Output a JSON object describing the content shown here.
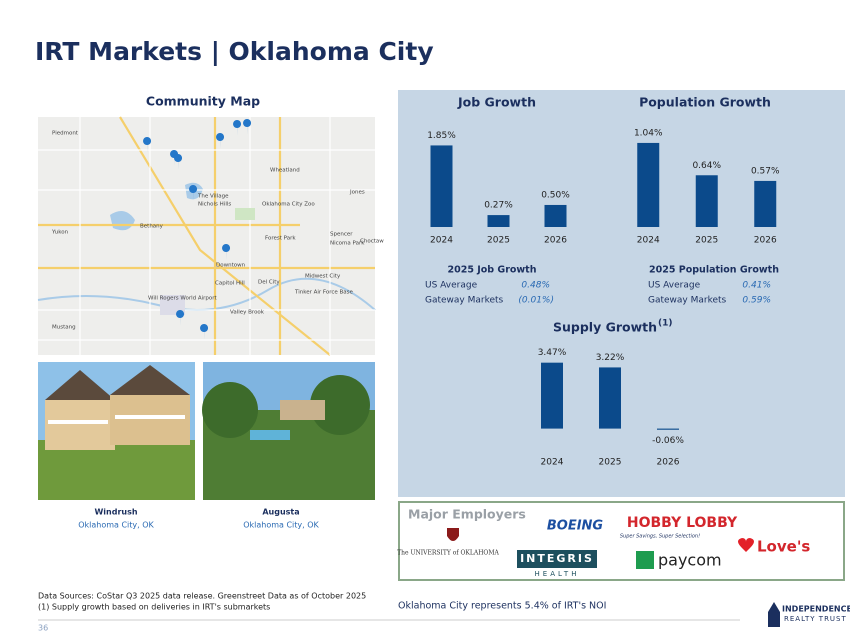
{
  "title": "IRT Markets | Oklahoma City",
  "map": {
    "heading": "Community Map",
    "labels": [
      "Piedmont",
      "Yukon",
      "Mustang",
      "Bethany",
      "Jones",
      "Spencer",
      "Choctaw",
      "Midwest City",
      "Del City",
      "Valley Brook",
      "Oklahoma City Zoo",
      "Will Rogers World Airport",
      "Nichols Hills",
      "The Village",
      "Forest Park",
      "Nicoma Park",
      "Wheatland",
      "Tinker Air Force Base",
      "Capitol Hill",
      "Downtown"
    ]
  },
  "properties": [
    {
      "name": "Windrush",
      "location": "Oklahoma City, OK"
    },
    {
      "name": "Augusta",
      "location": "Oklahoma City, OK"
    }
  ],
  "chart_data": [
    {
      "type": "bar",
      "title": "Job Growth",
      "categories": [
        "2024",
        "2025",
        "2026"
      ],
      "values": [
        1.85,
        0.27,
        0.5
      ],
      "value_labels": [
        "1.85%",
        "0.27%",
        "0.50%"
      ],
      "color": "#0b4a8b",
      "ylim": [
        0,
        2.2
      ]
    },
    {
      "type": "bar",
      "title": "Population Growth",
      "categories": [
        "2024",
        "2025",
        "2026"
      ],
      "values": [
        1.04,
        0.64,
        0.57
      ],
      "value_labels": [
        "1.04%",
        "0.64%",
        "0.57%"
      ],
      "color": "#0b4a8b",
      "ylim": [
        0,
        1.2
      ]
    },
    {
      "type": "bar",
      "title": "Supply Growth",
      "title_footnote": "(1)",
      "categories": [
        "2024",
        "2025",
        "2026"
      ],
      "values": [
        3.47,
        3.22,
        -0.06
      ],
      "value_labels": [
        "3.47%",
        "3.22%",
        "-0.06%"
      ],
      "color": "#0b4a8b",
      "ylim": [
        -0.6,
        4.4
      ]
    }
  ],
  "stats": [
    {
      "heading": "2025 Job Growth",
      "rows": [
        [
          "US Average",
          "0.48%"
        ],
        [
          "Gateway Markets",
          "(0.01%)"
        ]
      ]
    },
    {
      "heading": "2025 Population Growth",
      "rows": [
        [
          "US Average",
          "0.41%"
        ],
        [
          "Gateway Markets",
          "0.59%"
        ]
      ]
    }
  ],
  "employers": {
    "heading": "Major Employers",
    "logos": [
      "The UNIVERSITY of OKLAHOMA",
      "BOEING",
      "INTEGRIS",
      "HEALTH",
      "HOBBY LOBBY",
      "Super Savings, Super Selection!",
      "paycom",
      "Love's"
    ]
  },
  "noi_note": "Oklahoma City represents 5.4% of IRT's NOI",
  "footnotes": [
    "Data Sources: CoStar Q3 2025 data release. Greenstreet Data as of October 2025",
    "(1)  Supply growth based on deliveries in IRT's submarkets"
  ],
  "page_number": "36",
  "brand": [
    "INDEPENDENCE",
    "REALTY TRUST"
  ]
}
